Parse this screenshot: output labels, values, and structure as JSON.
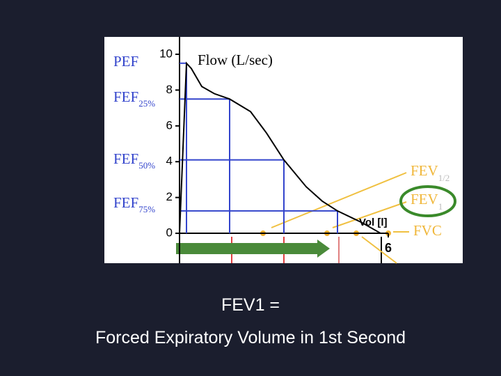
{
  "chart_data": {
    "type": "line",
    "y_label": "Flow (L/sec)",
    "x_label": "Vol [l]",
    "x": [
      0,
      0.2,
      0.34,
      0.64,
      1.0,
      1.44,
      2.04,
      2.5,
      3.0,
      3.64,
      4.1,
      4.54,
      5.24,
      5.78
    ],
    "series": [
      {
        "name": "Flow",
        "color": "#000000",
        "values": [
          0,
          9.5,
          9.2,
          8.2,
          7.8,
          7.5,
          6.8,
          5.6,
          4.1,
          2.6,
          1.8,
          1.25,
          0.6,
          0
        ]
      }
    ],
    "reference_points": [
      {
        "x": 0.2,
        "y": 9.5
      },
      {
        "x": 1.44,
        "y": 7.5
      },
      {
        "x": 3.0,
        "y": 4.1
      },
      {
        "x": 4.54,
        "y": 1.25
      }
    ],
    "reference_color": "#3344cc",
    "xlim": [
      -2.16,
      8.14
    ],
    "ylim": [
      -1.67,
      10.97
    ],
    "xticks": [
      6
    ],
    "yticks": [
      0,
      2,
      4,
      6,
      8,
      10
    ],
    "left_labels": [
      {
        "text": "PEF"
      },
      {
        "text": "FEF",
        "sub": "25%"
      },
      {
        "text": "FEF",
        "sub": "50%"
      },
      {
        "text": "FEF",
        "sub": "75%"
      }
    ],
    "right_labels": [
      {
        "text": "FEV",
        "sub": "1/2"
      },
      {
        "text": "FEV",
        "sub": "1"
      },
      {
        "text": "FVC"
      }
    ]
  },
  "caption": [
    "FEV1 =",
    "Forced Expiratory Volume in 1st Second"
  ]
}
